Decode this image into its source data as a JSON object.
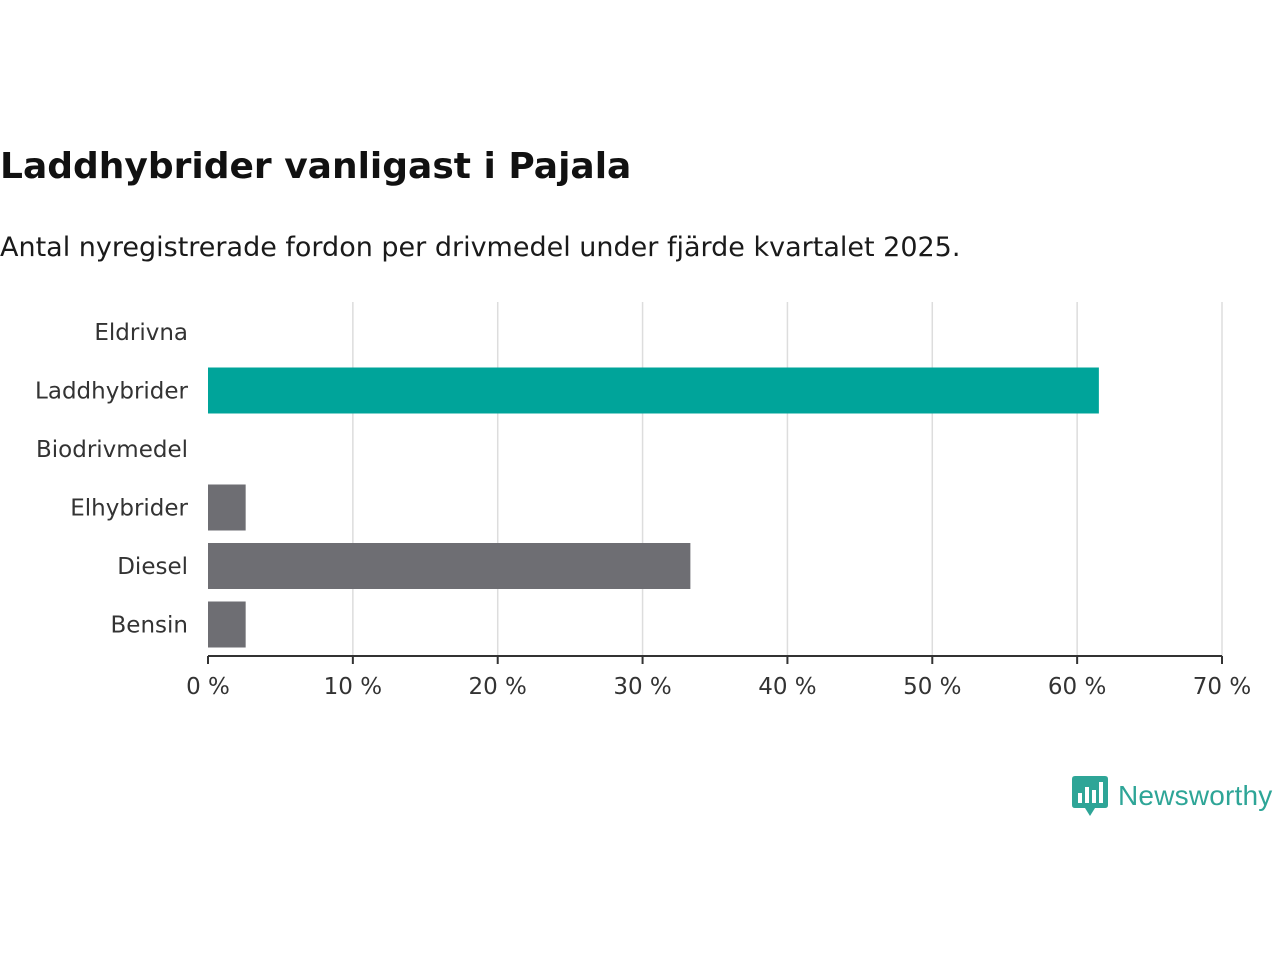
{
  "chart_data": {
    "type": "bar",
    "orientation": "horizontal",
    "title": "Laddhybrider vanligast i Pajala",
    "subtitle": "Antal nyregistrerade fordon per drivmedel under fjärde kvartalet 2025.",
    "categories": [
      "Eldrivna",
      "Laddhybrider",
      "Biodrivmedel",
      "Elhybrider",
      "Diesel",
      "Bensin"
    ],
    "values": [
      0,
      61.5,
      0,
      2.6,
      33.3,
      2.6
    ],
    "highlight": "Laddhybrider",
    "colors": {
      "highlight": "#00a49a",
      "default": "#6e6e73",
      "grid": "#dddddd",
      "axis": "#333333"
    },
    "xlim": [
      0,
      70
    ],
    "xticks": [
      0,
      10,
      20,
      30,
      40,
      50,
      60,
      70
    ],
    "tick_suffix": " %",
    "xlabel": "",
    "ylabel": "",
    "grid": true
  },
  "brand": {
    "name": "Newsworthy",
    "icon": "newsworthy-logo-icon",
    "color": "#2ea597"
  }
}
